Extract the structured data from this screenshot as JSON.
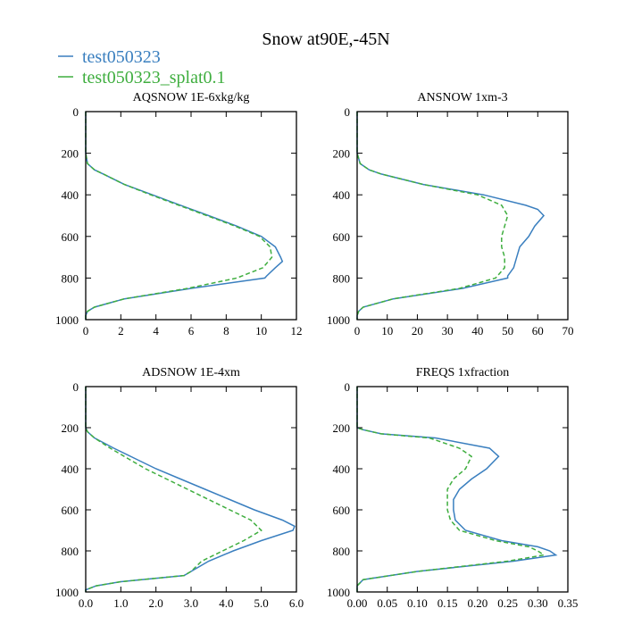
{
  "title": "Snow at90E,-45N",
  "legend": [
    {
      "label": "test050323",
      "color": "#3a7fbf",
      "dash": "solid"
    },
    {
      "label": "test050323_splat0.1",
      "color": "#3fae3f",
      "dash": "dashed"
    }
  ],
  "chart_data": [
    {
      "type": "line",
      "title": "AQSNOW  1E-6xkg/kg",
      "xlim": [
        0,
        12
      ],
      "ylim": [
        1000,
        0
      ],
      "xticks": [
        0,
        2,
        4,
        6,
        8,
        10,
        12
      ],
      "xtick_labels": [
        "0",
        "2",
        "4",
        "6",
        "8",
        "10",
        "12"
      ],
      "yticks": [
        0,
        200,
        400,
        600,
        800,
        1000
      ],
      "ytick_labels": [
        "0",
        "200",
        "400",
        "600",
        "800",
        "1000"
      ],
      "series": [
        {
          "name": "test050323",
          "y": [
            0,
            200,
            250,
            280,
            300,
            350,
            400,
            450,
            500,
            550,
            600,
            650,
            700,
            720,
            750,
            790,
            800,
            850,
            900,
            940,
            960,
            980,
            1000
          ],
          "x": [
            0,
            0,
            0.1,
            0.5,
            1.0,
            2.2,
            3.8,
            5.4,
            7.0,
            8.6,
            10.0,
            10.8,
            11.1,
            11.2,
            10.8,
            10.3,
            10.2,
            6.0,
            2.2,
            0.5,
            0.1,
            0,
            0
          ]
        },
        {
          "name": "test050323_splat0.1",
          "y": [
            0,
            200,
            250,
            280,
            300,
            350,
            400,
            450,
            500,
            550,
            600,
            650,
            700,
            750,
            800,
            850,
            900,
            940,
            960,
            980,
            1000
          ],
          "x": [
            0,
            0,
            0.1,
            0.5,
            1.0,
            2.2,
            3.7,
            5.3,
            6.9,
            8.5,
            9.9,
            10.5,
            10.6,
            10.1,
            8.6,
            5.8,
            2.2,
            0.5,
            0.1,
            0,
            0
          ]
        }
      ]
    },
    {
      "type": "line",
      "title": "ANSNOW  1xm-3",
      "xlim": [
        0,
        70
      ],
      "ylim": [
        1000,
        0
      ],
      "xticks": [
        0,
        10,
        20,
        30,
        40,
        50,
        60,
        70
      ],
      "xtick_labels": [
        "0",
        "10",
        "20",
        "30",
        "40",
        "50",
        "60",
        "70"
      ],
      "yticks": [
        0,
        200,
        400,
        600,
        800,
        1000
      ],
      "ytick_labels": [
        "0",
        "200",
        "400",
        "600",
        "800",
        "1000"
      ],
      "series": [
        {
          "name": "test050323",
          "y": [
            0,
            200,
            250,
            280,
            300,
            350,
            400,
            450,
            470,
            500,
            550,
            600,
            650,
            700,
            750,
            790,
            800,
            850,
            900,
            940,
            960,
            980,
            1000
          ],
          "x": [
            0,
            0,
            1,
            4,
            8,
            22,
            42,
            56,
            60,
            62,
            59,
            57,
            54,
            53,
            52,
            50,
            50,
            35,
            12,
            2,
            0.5,
            0,
            0
          ]
        },
        {
          "name": "test050323_splat0.1",
          "y": [
            0,
            200,
            250,
            280,
            300,
            350,
            400,
            450,
            500,
            550,
            600,
            650,
            700,
            750,
            800,
            850,
            900,
            940,
            960,
            980,
            1000
          ],
          "x": [
            0,
            0,
            1,
            4,
            8,
            22,
            40,
            48,
            50,
            49,
            48,
            48,
            49,
            49,
            46,
            34,
            12,
            2,
            0.5,
            0,
            0
          ]
        }
      ]
    },
    {
      "type": "line",
      "title": "ADSNOW  1E-4xm",
      "xlim": [
        0,
        6
      ],
      "ylim": [
        1000,
        0
      ],
      "xticks": [
        0,
        1,
        2,
        3,
        4,
        5,
        6
      ],
      "xtick_labels": [
        "0.0",
        "1.0",
        "2.0",
        "3.0",
        "4.0",
        "5.0",
        "6.0"
      ],
      "yticks": [
        0,
        200,
        400,
        600,
        800,
        1000
      ],
      "ytick_labels": [
        "0",
        "200",
        "400",
        "600",
        "800",
        "1000"
      ],
      "series": [
        {
          "name": "test050323",
          "y": [
            0,
            200,
            220,
            250,
            300,
            350,
            400,
            450,
            500,
            550,
            600,
            650,
            680,
            700,
            750,
            800,
            850,
            900,
            920,
            950,
            970,
            990,
            1000
          ],
          "x": [
            0,
            0,
            0.05,
            0.25,
            0.8,
            1.4,
            2.0,
            2.7,
            3.4,
            4.1,
            4.8,
            5.6,
            5.95,
            5.9,
            5.0,
            4.2,
            3.5,
            3.0,
            2.8,
            1.0,
            0.3,
            0,
            0
          ]
        },
        {
          "name": "test050323_splat0.1",
          "y": [
            0,
            200,
            220,
            250,
            300,
            350,
            400,
            450,
            500,
            550,
            600,
            650,
            700,
            750,
            800,
            850,
            900,
            920,
            950,
            970,
            990,
            1000
          ],
          "x": [
            0,
            0,
            0.05,
            0.25,
            0.7,
            1.2,
            1.7,
            2.3,
            2.9,
            3.5,
            4.1,
            4.7,
            5.0,
            4.5,
            3.9,
            3.3,
            3.0,
            2.8,
            1.0,
            0.3,
            0,
            0
          ]
        }
      ]
    },
    {
      "type": "line",
      "title": "FREQS  1xfraction",
      "xlim": [
        0,
        0.35
      ],
      "ylim": [
        1000,
        0
      ],
      "xticks": [
        0,
        0.05,
        0.1,
        0.15,
        0.2,
        0.25,
        0.3,
        0.35
      ],
      "xtick_labels": [
        "0.00",
        "0.05",
        "0.10",
        "0.15",
        "0.20",
        "0.25",
        "0.30",
        "0.35"
      ],
      "yticks": [
        0,
        200,
        400,
        600,
        800,
        1000
      ],
      "ytick_labels": [
        "0",
        "200",
        "400",
        "600",
        "800",
        "1000"
      ],
      "series": [
        {
          "name": "test050323",
          "y": [
            0,
            200,
            210,
            230,
            250,
            300,
            340,
            400,
            450,
            500,
            550,
            600,
            650,
            700,
            750,
            780,
            800,
            820,
            850,
            900,
            940,
            970,
            1000
          ],
          "x": [
            0,
            0,
            0.01,
            0.04,
            0.13,
            0.22,
            0.235,
            0.215,
            0.19,
            0.17,
            0.16,
            0.16,
            0.163,
            0.18,
            0.24,
            0.3,
            0.32,
            0.33,
            0.26,
            0.1,
            0.01,
            0,
            0
          ]
        },
        {
          "name": "test050323_splat0.1",
          "y": [
            0,
            200,
            210,
            230,
            250,
            300,
            340,
            400,
            450,
            500,
            550,
            600,
            650,
            700,
            750,
            780,
            800,
            820,
            850,
            900,
            940,
            970,
            1000
          ],
          "x": [
            0,
            0,
            0.01,
            0.04,
            0.12,
            0.17,
            0.19,
            0.18,
            0.16,
            0.15,
            0.15,
            0.15,
            0.155,
            0.17,
            0.23,
            0.285,
            0.3,
            0.31,
            0.25,
            0.1,
            0.01,
            0,
            0
          ]
        }
      ]
    }
  ]
}
